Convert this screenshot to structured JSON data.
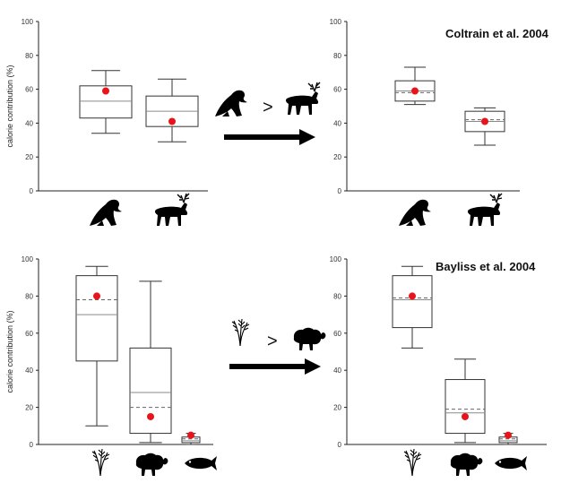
{
  "colors": {
    "box_stroke": "#333333",
    "mean_dot": "#e8141c",
    "silhouette": "#000000",
    "median_line": "#8a8a8a"
  },
  "icons": [
    "seal-icon",
    "reindeer-icon",
    "wheat-icon",
    "sheep-icon",
    "fish-icon",
    "right-arrow-icon"
  ],
  "arrows": {
    "top_comparison": ">",
    "bottom_comparison": ">"
  },
  "chart_data": [
    {
      "type": "box",
      "panel": "top-left",
      "title": "",
      "ylabel": "calorie contribution (%)",
      "ylim": [
        0,
        100
      ],
      "yticks": [
        "0",
        "20",
        "40",
        "60",
        "80",
        "100"
      ],
      "categories": [
        "seal",
        "reindeer"
      ],
      "boxes": [
        {
          "min": 34,
          "q1": 43,
          "median": 53,
          "q3": 62,
          "max": 71,
          "mean": 59
        },
        {
          "min": 29,
          "q1": 38,
          "median": 47,
          "q3": 56,
          "max": 66,
          "mean": 41
        }
      ]
    },
    {
      "type": "box",
      "panel": "top-right",
      "title": "Coltrain et al. 2004",
      "ylabel": "",
      "ylim": [
        0,
        100
      ],
      "yticks": [
        "0",
        "20",
        "40",
        "60",
        "80",
        "100"
      ],
      "categories": [
        "seal",
        "reindeer"
      ],
      "boxes": [
        {
          "min": 51,
          "q1": 53,
          "median": 59,
          "q3": 65,
          "max": 73,
          "mean": 59,
          "dashed_mean": 58
        },
        {
          "min": 27,
          "q1": 35,
          "median": 41,
          "q3": 47,
          "max": 49,
          "mean": 41,
          "dashed_mean": 42
        }
      ]
    },
    {
      "type": "box",
      "panel": "bottom-left",
      "title": "",
      "ylabel": "calorie contribution (%)",
      "ylim": [
        0,
        100
      ],
      "yticks": [
        "0",
        "20",
        "40",
        "60",
        "80",
        "100"
      ],
      "categories": [
        "wheat",
        "sheep",
        "fish"
      ],
      "boxes": [
        {
          "min": 10,
          "q1": 45,
          "median": 70,
          "q3": 91,
          "max": 96,
          "mean": 80,
          "dashed_mean": 78
        },
        {
          "min": 1,
          "q1": 6,
          "median": 28,
          "q3": 52,
          "max": 88,
          "mean": 15,
          "dashed_mean": 20
        },
        {
          "min": 0,
          "q1": 1,
          "median": 2,
          "q3": 4,
          "max": 6,
          "mean": 5,
          "dashed_mean": 3
        }
      ]
    },
    {
      "type": "box",
      "panel": "bottom-right",
      "title": "Bayliss et al. 2004",
      "ylabel": "",
      "ylim": [
        0,
        100
      ],
      "yticks": [
        "0",
        "20",
        "40",
        "60",
        "80",
        "100"
      ],
      "categories": [
        "wheat",
        "sheep",
        "fish"
      ],
      "boxes": [
        {
          "min": 52,
          "q1": 63,
          "median": 78,
          "q3": 91,
          "max": 96,
          "mean": 80,
          "dashed_mean": 79
        },
        {
          "min": 1,
          "q1": 6,
          "median": 17,
          "q3": 35,
          "max": 46,
          "mean": 15,
          "dashed_mean": 19
        },
        {
          "min": 0,
          "q1": 1,
          "median": 2,
          "q3": 4,
          "max": 6,
          "mean": 5,
          "dashed_mean": 3
        }
      ]
    }
  ]
}
